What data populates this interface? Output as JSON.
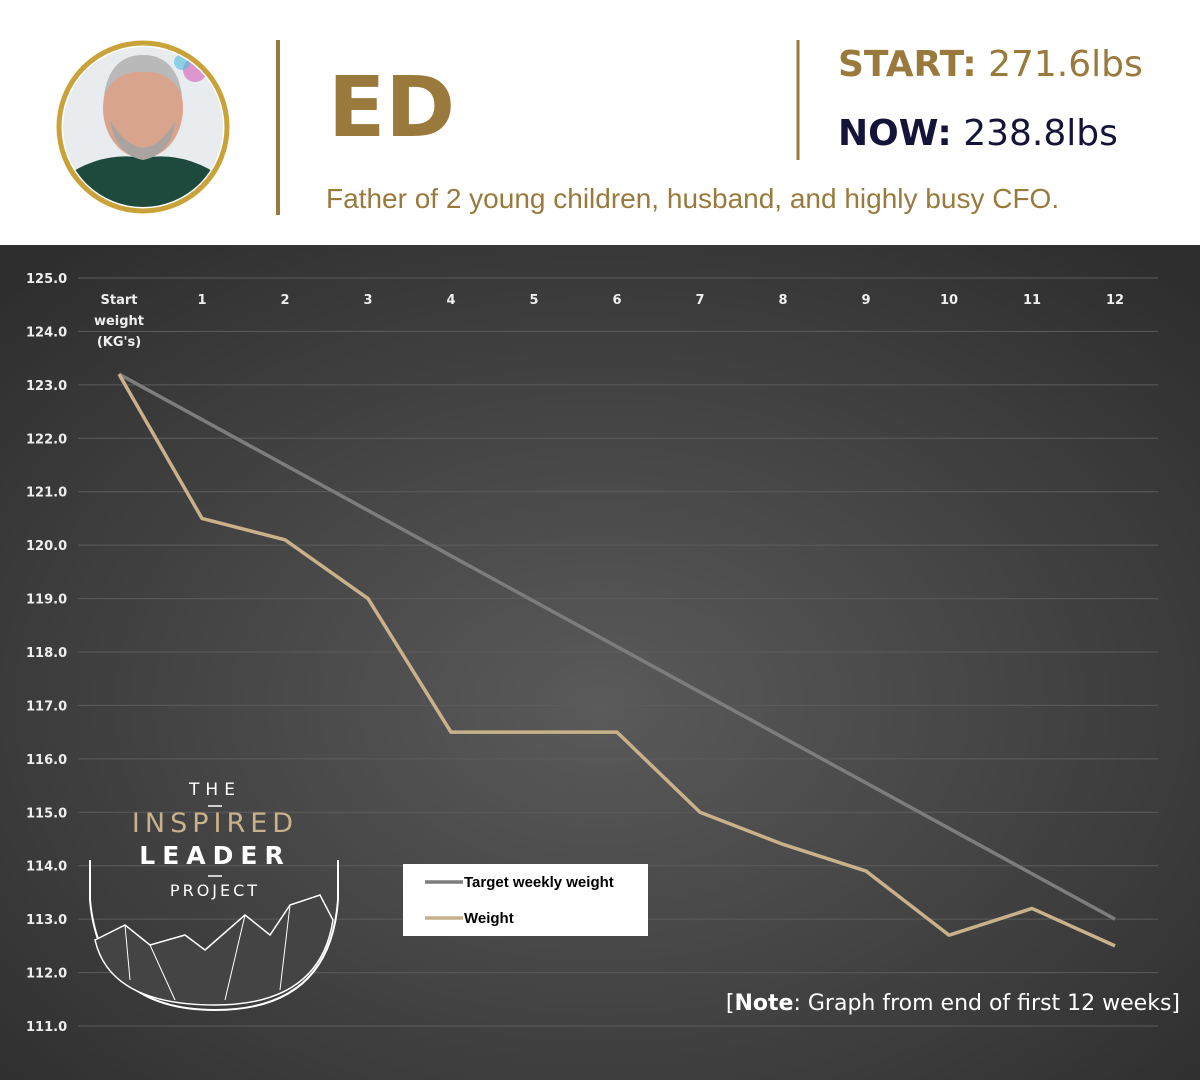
{
  "header": {
    "name": "ED",
    "start_label": "START:",
    "start_value": "271.6lbs",
    "now_label": "NOW:",
    "now_value": "238.8lbs",
    "description": "Father of 2 young children, husband, and highly busy CFO."
  },
  "logo": {
    "line1": "THE",
    "line2": "INSPIRED",
    "line3": "LEADER",
    "line4": "PROJECT"
  },
  "note": {
    "open": "[",
    "bold": "Note",
    "text": ": Graph from end of first 12 weeks]"
  },
  "chart_data": {
    "type": "line",
    "categories": [
      "Start weight (KG's)",
      "1",
      "2",
      "3",
      "4",
      "5",
      "6",
      "7",
      "8",
      "9",
      "10",
      "11",
      "12"
    ],
    "series": [
      {
        "name": "Target weekly weight",
        "color": "#7d7d7d",
        "values": [
          123.2,
          122.35,
          121.5,
          120.65,
          119.8,
          118.95,
          118.1,
          117.25,
          116.4,
          115.55,
          114.7,
          113.85,
          113.0
        ]
      },
      {
        "name": "Weight",
        "color": "#c9b18b",
        "values": [
          123.2,
          120.5,
          120.1,
          119.0,
          116.5,
          116.5,
          116.5,
          115.0,
          114.4,
          113.9,
          112.7,
          113.2,
          112.5
        ]
      }
    ],
    "ylim": [
      111,
      125
    ],
    "yticks": [
      {
        "value": 111,
        "label": "111.0"
      },
      {
        "value": 112,
        "label": "112.0"
      },
      {
        "value": 113,
        "label": "113.0"
      },
      {
        "value": 114,
        "label": "114.0"
      },
      {
        "value": 115,
        "label": "115.0"
      },
      {
        "value": 116,
        "label": "116.0"
      },
      {
        "value": 117,
        "label": "117.0"
      },
      {
        "value": 118,
        "label": "118.0"
      },
      {
        "value": 119,
        "label": "119.0"
      },
      {
        "value": 120,
        "label": "120.0"
      },
      {
        "value": 121,
        "label": "121.0"
      },
      {
        "value": 122,
        "label": "122.0"
      },
      {
        "value": 123,
        "label": "123.0"
      },
      {
        "value": 124,
        "label": "124.0"
      },
      {
        "value": 125,
        "label": "125.0"
      }
    ],
    "grid": true
  }
}
